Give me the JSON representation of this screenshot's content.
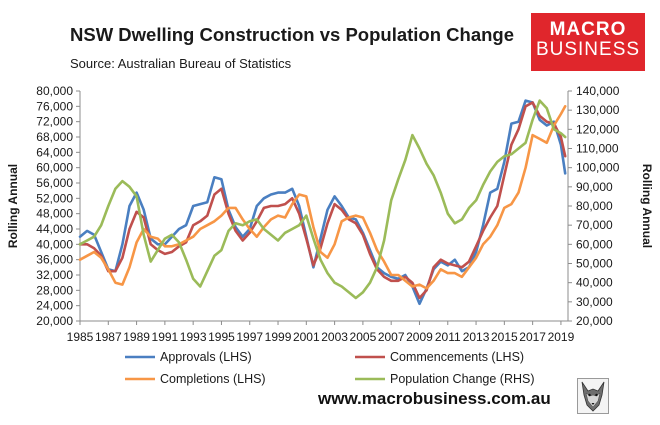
{
  "header": {
    "title": "NSW Dwelling Construction vs Population Change",
    "subtitle": "Source: Australian Bureau of Statistics"
  },
  "logo": {
    "line1": "MACRO",
    "line2": "BUSINESS",
    "color": "#e0262c"
  },
  "footer": {
    "website": "www.macrobusiness.com.au"
  },
  "chart_data": {
    "type": "line",
    "title": "NSW Dwelling Construction vs Population Change",
    "subtitle": "Source: Australian Bureau of Statistics",
    "ylabel": "Rolling Annual",
    "y2label": "Rolling Annual",
    "x_range": [
      1985,
      2019.5
    ],
    "ylim": [
      20000,
      80000
    ],
    "y2lim": [
      20000,
      140000
    ],
    "grid": false,
    "legend_position": "bottom",
    "y_ticks": [
      "20,000",
      "24,000",
      "28,000",
      "32,000",
      "36,000",
      "40,000",
      "44,000",
      "48,000",
      "52,000",
      "56,000",
      "60,000",
      "64,000",
      "68,000",
      "72,000",
      "76,000",
      "80,000"
    ],
    "y2_ticks": [
      "20,000",
      "30,000",
      "40,000",
      "50,000",
      "60,000",
      "70,000",
      "80,000",
      "90,000",
      "100,000",
      "110,000",
      "120,000",
      "130,000",
      "140,000"
    ],
    "x_ticks": [
      "1985",
      "1987",
      "1989",
      "1991",
      "1993",
      "1995",
      "1997",
      "1999",
      "2001",
      "2003",
      "2005",
      "2007",
      "2009",
      "2011",
      "2013",
      "2015",
      "2017",
      "2019"
    ],
    "series": [
      {
        "name": "Approvals (LHS)",
        "axis": "left",
        "color": "#4a7fc1",
        "x": [
          1985,
          1985.5,
          1986,
          1986.5,
          1987,
          1987.5,
          1988,
          1988.5,
          1989,
          1989.5,
          1990,
          1990.5,
          1991,
          1991.5,
          1992,
          1992.5,
          1993,
          1993.5,
          1994,
          1994.5,
          1995,
          1995.5,
          1996,
          1996.5,
          1997,
          1997.5,
          1998,
          1998.5,
          1999,
          1999.5,
          2000,
          2000.5,
          2001,
          2001.5,
          2002,
          2002.5,
          2003,
          2003.5,
          2004,
          2004.5,
          2005,
          2005.5,
          2006,
          2006.5,
          2007,
          2007.5,
          2008,
          2008.5,
          2009,
          2009.5,
          2010,
          2010.5,
          2011,
          2011.5,
          2012,
          2012.5,
          2013,
          2013.5,
          2014,
          2014.5,
          2015,
          2015.5,
          2016,
          2016.5,
          2017,
          2017.5,
          2018,
          2018.5,
          2019,
          2019.3
        ],
        "values": [
          42000,
          43500,
          42500,
          38000,
          33500,
          33000,
          40000,
          50000,
          53500,
          49000,
          41500,
          40000,
          40000,
          42000,
          44000,
          45000,
          50000,
          50500,
          51000,
          57500,
          57000,
          49000,
          44500,
          42000,
          44000,
          50000,
          52000,
          53000,
          53500,
          53500,
          54500,
          50000,
          42000,
          34000,
          41500,
          49000,
          52500,
          50000,
          47000,
          46500,
          43000,
          38500,
          34000,
          32500,
          31500,
          31000,
          32000,
          29000,
          24500,
          28500,
          33500,
          35500,
          34500,
          36000,
          33000,
          34000,
          38000,
          45000,
          53500,
          54500,
          61500,
          71500,
          72000,
          77500,
          77000,
          72500,
          71000,
          72000,
          66000,
          58500
        ]
      },
      {
        "name": "Commencements (LHS)",
        "axis": "left",
        "color": "#c0504d",
        "x": [
          1985,
          1985.5,
          1986,
          1986.5,
          1987,
          1987.5,
          1988,
          1988.5,
          1989,
          1989.5,
          1990,
          1990.5,
          1991,
          1991.5,
          1992,
          1992.5,
          1993,
          1993.5,
          1994,
          1994.5,
          1995,
          1995.5,
          1996,
          1996.5,
          1997,
          1997.5,
          1998,
          1998.5,
          1999,
          1999.5,
          2000,
          2000.5,
          2001,
          2001.5,
          2002,
          2002.5,
          2003,
          2003.5,
          2004,
          2004.5,
          2005,
          2005.5,
          2006,
          2006.5,
          2007,
          2007.5,
          2008,
          2008.5,
          2009,
          2009.5,
          2010,
          2010.5,
          2011,
          2011.5,
          2012,
          2012.5,
          2013,
          2013.5,
          2014,
          2014.5,
          2015,
          2015.5,
          2016,
          2016.5,
          2017,
          2017.5,
          2018,
          2018.5,
          2019,
          2019.3
        ],
        "values": [
          40000,
          40000,
          39000,
          37000,
          33000,
          33000,
          36500,
          44000,
          48500,
          47000,
          40000,
          38500,
          37500,
          38000,
          39500,
          40500,
          45000,
          46000,
          47500,
          53000,
          54500,
          48000,
          43500,
          41000,
          43000,
          46000,
          49500,
          50000,
          50000,
          50500,
          52000,
          48000,
          41500,
          34500,
          39000,
          45500,
          50500,
          49000,
          46500,
          45500,
          42500,
          37500,
          33500,
          31500,
          30500,
          30500,
          31500,
          30000,
          26000,
          28000,
          34000,
          36000,
          35000,
          34500,
          34000,
          35500,
          39500,
          43500,
          47000,
          50000,
          58000,
          66000,
          70000,
          76000,
          77000,
          73500,
          72000,
          71500,
          68000,
          63000
        ]
      },
      {
        "name": "Completions (LHS)",
        "axis": "left",
        "color": "#f79646",
        "x": [
          1985,
          1985.5,
          1986,
          1986.5,
          1987,
          1987.5,
          1988,
          1988.5,
          1989,
          1989.5,
          1990,
          1990.5,
          1991,
          1991.5,
          1992,
          1992.5,
          1993,
          1993.5,
          1994,
          1994.5,
          1995,
          1995.5,
          1996,
          1996.5,
          1997,
          1997.5,
          1998,
          1998.5,
          1999,
          1999.5,
          2000,
          2000.5,
          2001,
          2001.5,
          2002,
          2002.5,
          2003,
          2003.5,
          2004,
          2004.5,
          2005,
          2005.5,
          2006,
          2006.5,
          2007,
          2007.5,
          2008,
          2008.5,
          2009,
          2009.5,
          2010,
          2010.5,
          2011,
          2011.5,
          2012,
          2012.5,
          2013,
          2013.5,
          2014,
          2014.5,
          2015,
          2015.5,
          2016,
          2016.5,
          2017,
          2017.5,
          2018,
          2018.5,
          2019,
          2019.3
        ],
        "values": [
          36000,
          37000,
          38000,
          36500,
          33500,
          30000,
          29500,
          34000,
          40500,
          44000,
          42000,
          41500,
          39500,
          39500,
          40000,
          41000,
          42000,
          44000,
          45000,
          46000,
          47500,
          49500,
          49500,
          46500,
          44000,
          42000,
          44500,
          46500,
          47500,
          47000,
          50500,
          53000,
          52500,
          44500,
          38000,
          36500,
          40000,
          46000,
          47000,
          47500,
          47000,
          43000,
          38500,
          35500,
          32000,
          32000,
          30500,
          29000,
          29500,
          28500,
          30500,
          33500,
          32500,
          32500,
          31500,
          34000,
          36500,
          40000,
          42000,
          45000,
          49500,
          50500,
          53500,
          60000,
          68500,
          67500,
          66500,
          71000,
          74000,
          76000
        ]
      },
      {
        "name": "Population Change (RHS)",
        "axis": "right",
        "color": "#9bbb59",
        "x": [
          1985,
          1985.5,
          1986,
          1986.5,
          1987,
          1987.5,
          1988,
          1988.5,
          1989,
          1989.5,
          1990,
          1990.5,
          1991,
          1991.5,
          1992,
          1992.5,
          1993,
          1993.5,
          1994,
          1994.5,
          1995,
          1995.5,
          1996,
          1996.5,
          1997,
          1997.5,
          1998,
          1998.5,
          1999,
          1999.5,
          2000,
          2000.5,
          2001,
          2001.5,
          2002,
          2002.5,
          2003,
          2003.5,
          2004,
          2004.5,
          2005,
          2005.5,
          2006,
          2006.5,
          2007,
          2007.5,
          2008,
          2008.5,
          2009,
          2009.5,
          2010,
          2010.5,
          2011,
          2011.5,
          2012,
          2012.5,
          2013,
          2013.5,
          2014,
          2014.5,
          2015,
          2015.5,
          2016,
          2016.5,
          2017,
          2017.5,
          2018,
          2018.5,
          2019,
          2019.3
        ],
        "values": [
          60000,
          62000,
          64000,
          70000,
          80000,
          89000,
          93000,
          90000,
          85000,
          65000,
          51000,
          57000,
          63000,
          65000,
          61000,
          52000,
          42000,
          38000,
          46000,
          54000,
          57000,
          67000,
          71000,
          70000,
          72000,
          73000,
          68000,
          65000,
          62000,
          66000,
          68000,
          70000,
          75000,
          63000,
          52000,
          45000,
          40000,
          38000,
          35000,
          32000,
          35000,
          40000,
          48000,
          62000,
          83000,
          94000,
          104000,
          117000,
          110000,
          102000,
          96000,
          87000,
          76000,
          71000,
          73000,
          79000,
          83000,
          91000,
          98000,
          103000,
          106000,
          107000,
          110000,
          113000,
          125000,
          135000,
          131000,
          120000,
          118000,
          116000
        ]
      }
    ]
  }
}
